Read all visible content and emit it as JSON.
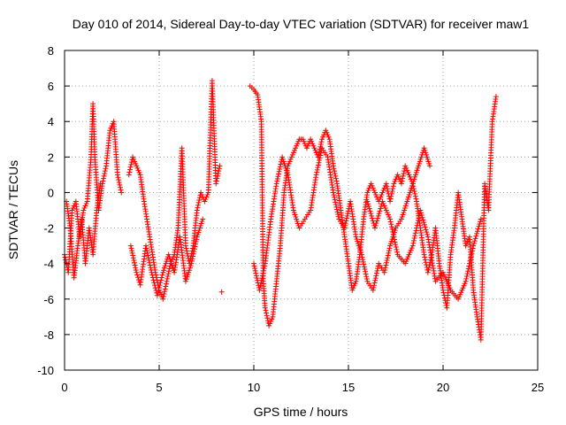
{
  "chart_data": {
    "type": "scatter",
    "title": "Day 010 of 2014, Sidereal Day-to-day VTEC variation (SDTVAR) for receiver maw1",
    "xlabel": "GPS time / hours",
    "ylabel": "SDTVAR / TECUs",
    "xlim": [
      0,
      25
    ],
    "ylim": [
      -10,
      8
    ],
    "xticks": [
      "0",
      "5",
      "10",
      "15",
      "20",
      "25"
    ],
    "yticks": [
      "-10",
      "-8",
      "-6",
      "-4",
      "-2",
      "0",
      "2",
      "4",
      "6",
      "8"
    ],
    "grid": true,
    "marker": "+",
    "series": [
      {
        "name": "SDTVAR",
        "color": "#ff0000",
        "segments": [
          {
            "x": [
              0.0,
              0.2,
              0.4,
              0.6,
              0.8,
              1.0,
              1.2,
              1.4,
              1.5,
              1.6,
              1.8,
              2.0,
              2.2,
              2.4,
              2.6,
              2.8,
              3.0
            ],
            "y": [
              -3.5,
              -4.5,
              -1.0,
              -0.5,
              -2.5,
              -1.0,
              -0.5,
              2.0,
              5.0,
              2.0,
              -1.0,
              0.5,
              1.5,
              3.5,
              4.0,
              1.0,
              0.0
            ]
          },
          {
            "x": [
              0.1,
              0.3,
              0.5,
              0.7,
              0.9,
              1.1,
              1.3,
              1.5,
              1.7,
              1.9
            ],
            "y": [
              -0.5,
              -2.0,
              -4.8,
              -3.0,
              -1.5,
              -4.0,
              -2.0,
              -3.5,
              -1.0,
              0.5
            ]
          },
          {
            "x": [
              3.4,
              3.6,
              3.8,
              4.0,
              4.2,
              4.5,
              4.8,
              5.0,
              5.2,
              5.4,
              5.6,
              5.8,
              6.0,
              6.2,
              6.4,
              6.6,
              6.8,
              7.0,
              7.2,
              7.4,
              7.6,
              7.8,
              8.0,
              8.2
            ],
            "y": [
              1.0,
              2.0,
              1.5,
              1.0,
              -0.5,
              -2.5,
              -4.5,
              -5.5,
              -6.0,
              -5.0,
              -4.0,
              -3.5,
              -2.0,
              2.5,
              -3.0,
              -4.0,
              -3.0,
              -1.0,
              0.0,
              -0.5,
              0.0,
              6.3,
              0.5,
              1.5
            ]
          },
          {
            "x": [
              3.5,
              3.8,
              4.0,
              4.3,
              4.6,
              4.9,
              5.2,
              5.5,
              5.8,
              6.1,
              6.4,
              6.7,
              7.0,
              7.3
            ],
            "y": [
              -3.0,
              -4.5,
              -5.2,
              -3.0,
              -4.5,
              -5.8,
              -4.5,
              -3.5,
              -4.5,
              -2.5,
              -5.0,
              -4.0,
              -2.5,
              -1.5
            ]
          },
          {
            "x": [
              8.3
            ],
            "y": [
              -5.6
            ]
          },
          {
            "x": [
              9.8,
              10.0,
              10.2,
              10.4,
              10.5,
              10.6,
              10.8,
              11.0,
              11.2,
              11.4,
              11.6,
              11.8,
              12.0,
              12.2,
              12.4,
              12.6,
              12.8,
              13.0,
              13.2,
              13.4,
              13.6,
              13.8,
              14.0,
              14.2,
              14.4,
              14.6,
              14.8,
              15.0,
              15.2,
              15.4,
              15.6,
              15.8,
              16.0,
              16.2,
              16.4,
              16.6,
              16.8,
              17.0,
              17.2,
              17.4,
              17.6,
              17.8,
              18.0,
              18.2,
              18.4,
              18.6,
              18.8,
              19.0,
              19.2,
              19.4,
              19.6,
              19.8,
              20.0,
              20.2,
              20.4,
              20.6,
              20.8,
              21.0,
              21.2,
              21.4,
              21.6,
              21.8,
              22.0,
              22.2,
              22.4,
              22.6,
              22.8
            ],
            "y": [
              6.0,
              5.8,
              5.5,
              4.0,
              -5.0,
              -6.5,
              -7.5,
              -7.0,
              -5.0,
              -3.0,
              0.0,
              1.5,
              2.0,
              2.5,
              3.0,
              3.0,
              2.5,
              3.0,
              2.5,
              2.0,
              3.0,
              3.5,
              3.0,
              1.5,
              0.5,
              -1.0,
              -2.5,
              -4.0,
              -5.5,
              -5.0,
              -3.5,
              -1.5,
              0.0,
              0.5,
              0.0,
              -0.5,
              0.0,
              0.5,
              -0.5,
              0.5,
              1.0,
              0.5,
              1.5,
              1.0,
              0.5,
              -0.5,
              -2.0,
              -3.5,
              -4.5,
              -3.5,
              -2.0,
              -4.0,
              -5.5,
              -6.5,
              -3.5,
              -2.0,
              0.0,
              -1.5,
              -3.0,
              -2.5,
              -5.5,
              -7.0,
              -8.3,
              0.5,
              -1.0,
              4.0,
              5.4
            ]
          },
          {
            "x": [
              10.0,
              10.3,
              10.6,
              10.9,
              11.2,
              11.5,
              11.8,
              12.1,
              12.4,
              12.7,
              13.0,
              13.3,
              13.6,
              13.9,
              14.2,
              14.5,
              14.8,
              15.1,
              15.4,
              15.7,
              16.0,
              16.3,
              16.6,
              16.9,
              17.2,
              17.5,
              17.8,
              18.1,
              18.4,
              18.7,
              19.0,
              19.3
            ],
            "y": [
              -4.0,
              -5.5,
              -4.0,
              -1.5,
              0.5,
              2.0,
              1.0,
              -1.0,
              -2.0,
              -1.5,
              -1.0,
              1.0,
              2.5,
              2.0,
              0.0,
              -1.5,
              -2.0,
              -0.5,
              -2.5,
              -3.5,
              -5.0,
              -5.5,
              -4.0,
              -4.5,
              -3.0,
              -2.0,
              -1.5,
              -0.5,
              0.5,
              1.5,
              2.5,
              1.5
            ]
          },
          {
            "x": [
              16.0,
              16.4,
              16.8,
              17.2,
              17.6,
              18.0,
              18.4,
              18.8,
              19.2,
              19.6,
              20.0,
              20.4,
              20.8,
              21.2,
              21.6,
              22.0
            ],
            "y": [
              -0.5,
              -2.0,
              -0.5,
              -1.5,
              -3.5,
              -4.0,
              -3.0,
              -1.0,
              -2.5,
              -5.0,
              -4.5,
              -5.5,
              -6.0,
              -5.0,
              -3.0,
              -1.5
            ]
          }
        ]
      }
    ]
  }
}
